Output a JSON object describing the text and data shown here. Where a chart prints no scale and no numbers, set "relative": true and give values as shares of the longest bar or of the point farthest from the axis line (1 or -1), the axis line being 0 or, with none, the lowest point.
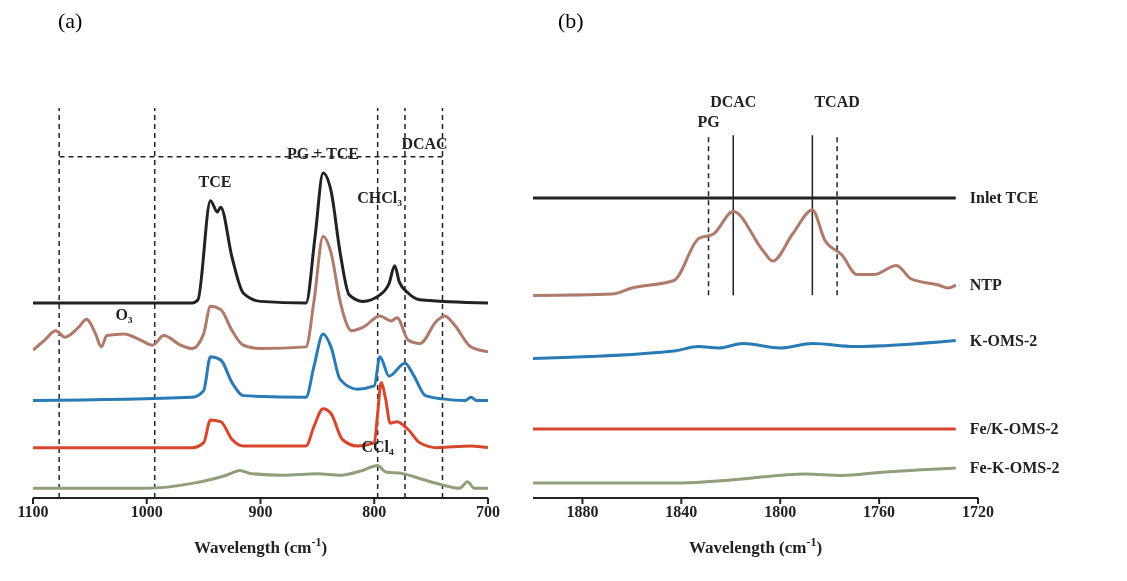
{
  "chart_data": [
    {
      "type": "line",
      "title": "(a)",
      "xlabel": "Wavelength (cm$^{-1}$)",
      "relative": true,
      "xlim": [
        1100,
        700
      ],
      "xticks": [
        1100,
        1000,
        900,
        800,
        700
      ],
      "series": [
        {
          "color": "#222222",
          "x": [
            1100,
            960,
            955,
            944,
            938,
            935,
            925,
            915,
            900,
            860,
            852,
            845,
            838,
            830,
            822,
            810,
            795,
            787,
            782,
            778,
            770,
            760,
            700
          ],
          "values": [
            0.6,
            0.6,
            0.61,
            0.915,
            0.88,
            0.895,
            0.74,
            0.63,
            0.605,
            0.6,
            0.805,
            1.0,
            0.945,
            0.755,
            0.625,
            0.605,
            0.625,
            0.66,
            0.715,
            0.665,
            0.63,
            0.61,
            0.6
          ]
        },
        {
          "color": "#b07a6a",
          "x": [
            1100,
            1090,
            1080,
            1072,
            1060,
            1053,
            1045,
            1040,
            1035,
            1020,
            1005,
            995,
            985,
            970,
            960,
            950,
            944,
            935,
            925,
            915,
            900,
            860,
            853,
            845,
            838,
            830,
            820,
            810,
            795,
            785,
            780,
            770,
            760,
            745,
            738,
            730,
            715,
            700
          ],
          "values": [
            0.455,
            0.485,
            0.515,
            0.495,
            0.525,
            0.55,
            0.505,
            0.465,
            0.5,
            0.505,
            0.485,
            0.47,
            0.5,
            0.47,
            0.46,
            0.505,
            0.59,
            0.58,
            0.515,
            0.47,
            0.46,
            0.465,
            0.605,
            0.805,
            0.755,
            0.605,
            0.515,
            0.525,
            0.56,
            0.545,
            0.555,
            0.485,
            0.475,
            0.545,
            0.56,
            0.535,
            0.465,
            0.45
          ]
        },
        {
          "color": "#2a7ab5",
          "x": [
            1100,
            960,
            950,
            944,
            935,
            925,
            915,
            860,
            853,
            845,
            838,
            830,
            815,
            800,
            795,
            787,
            773,
            765,
            755,
            740,
            720,
            715,
            710,
            700
          ],
          "values": [
            0.3,
            0.31,
            0.33,
            0.435,
            0.425,
            0.355,
            0.315,
            0.31,
            0.405,
            0.505,
            0.465,
            0.365,
            0.335,
            0.345,
            0.435,
            0.375,
            0.415,
            0.375,
            0.315,
            0.305,
            0.3,
            0.31,
            0.3,
            0.3
          ]
        },
        {
          "color": "#d8472b",
          "x": [
            1100,
            960,
            950,
            944,
            935,
            925,
            915,
            860,
            853,
            845,
            838,
            828,
            815,
            800,
            797,
            794,
            790,
            786,
            780,
            770,
            760,
            745,
            715,
            700
          ],
          "values": [
            0.155,
            0.155,
            0.17,
            0.24,
            0.235,
            0.18,
            0.16,
            0.16,
            0.22,
            0.275,
            0.26,
            0.18,
            0.16,
            0.17,
            0.26,
            0.355,
            0.305,
            0.23,
            0.235,
            0.21,
            0.17,
            0.155,
            0.16,
            0.155
          ]
        },
        {
          "color": "#8f9f7a",
          "x": [
            1100,
            1000,
            960,
            930,
            918,
            908,
            880,
            850,
            830,
            810,
            797,
            790,
            775,
            760,
            740,
            725,
            718,
            712,
            700
          ],
          "values": [
            0.03,
            0.03,
            0.045,
            0.07,
            0.085,
            0.075,
            0.07,
            0.075,
            0.07,
            0.085,
            0.1,
            0.08,
            0.075,
            0.06,
            0.04,
            0.03,
            0.05,
            0.03,
            0.03
          ]
        }
      ],
      "ref_lines": [
        {
          "axis": "x",
          "value": 1077,
          "label": null,
          "line_style": "dashed"
        },
        {
          "axis": "x",
          "value": 993,
          "label": null,
          "line_style": "dashed"
        },
        {
          "axis": "x",
          "value": 797,
          "label": null,
          "line_style": "dashed"
        },
        {
          "axis": "x",
          "value": 740,
          "label": null,
          "line_style": "dashed"
        },
        {
          "axis": "y",
          "value": 1.05,
          "label": "DCAC",
          "line_style": "dashed"
        },
        {
          "axis": "x",
          "value": 773,
          "label": "CHCl₃",
          "line_style": "dashed"
        }
      ],
      "annotations": [
        {
          "text": "TCE",
          "x": 940,
          "y": 0.915
        },
        {
          "text": "PG + TCE",
          "x": 845,
          "y": 1.0
        },
        {
          "text": "O₃",
          "x": 1020,
          "y": 0.505
        },
        {
          "text": "CCl₄",
          "x": 797,
          "y": 0.1
        }
      ]
    },
    {
      "type": "line",
      "title": "(b)",
      "xlabel": "Wavelength (cm$^{-1}$)",
      "relative": true,
      "xlim": [
        1900,
        1720
      ],
      "xticks": [
        1880,
        1840,
        1800,
        1760,
        1720
      ],
      "series": [
        {
          "name": "Inlet TCE",
          "color": "#222222",
          "x": [
            1900,
            1729
          ],
          "values": [
            1.0,
            1.0
          ]
        },
        {
          "name": "NTP",
          "color": "#b07a6a",
          "x": [
            1900,
            1868,
            1860,
            1843,
            1833,
            1827,
            1819,
            1807,
            1803,
            1795,
            1787,
            1782,
            1775,
            1769,
            1762,
            1753,
            1747,
            1736,
            1732,
            1729
          ],
          "values": [
            0.675,
            0.68,
            0.7,
            0.725,
            0.865,
            0.88,
            0.955,
            0.825,
            0.79,
            0.88,
            0.96,
            0.86,
            0.81,
            0.745,
            0.745,
            0.775,
            0.73,
            0.71,
            0.7,
            0.71
          ]
        },
        {
          "name": "K-OMS-2",
          "color": "#2a7ab5",
          "x": [
            1900,
            1843,
            1833,
            1825,
            1815,
            1800,
            1787,
            1770,
            1729
          ],
          "values": [
            0.465,
            0.49,
            0.505,
            0.5,
            0.515,
            0.5,
            0.515,
            0.505,
            0.525
          ]
        },
        {
          "name": "Fe/K-OMS-2",
          "color": "#d8472b",
          "x": [
            1900,
            1729
          ],
          "values": [
            0.23,
            0.23
          ]
        },
        {
          "name": "Fe-K-OMS-2",
          "color": "#8f9f7a",
          "x": [
            1900,
            1840,
            1820,
            1790,
            1775,
            1760,
            1729
          ],
          "values": [
            0.05,
            0.05,
            0.06,
            0.08,
            0.075,
            0.085,
            0.1
          ]
        }
      ],
      "ref_lines": [
        {
          "axis": "x",
          "value": 1829,
          "label": "PG",
          "line_style": "dashed"
        },
        {
          "axis": "x",
          "value": 1819,
          "label": "DCAC",
          "line_style": "solid"
        },
        {
          "axis": "x",
          "value": 1787,
          "label": null,
          "line_style": "solid"
        },
        {
          "axis": "x",
          "value": 1777,
          "label": "TCAD",
          "line_style": "dashed"
        }
      ]
    }
  ]
}
